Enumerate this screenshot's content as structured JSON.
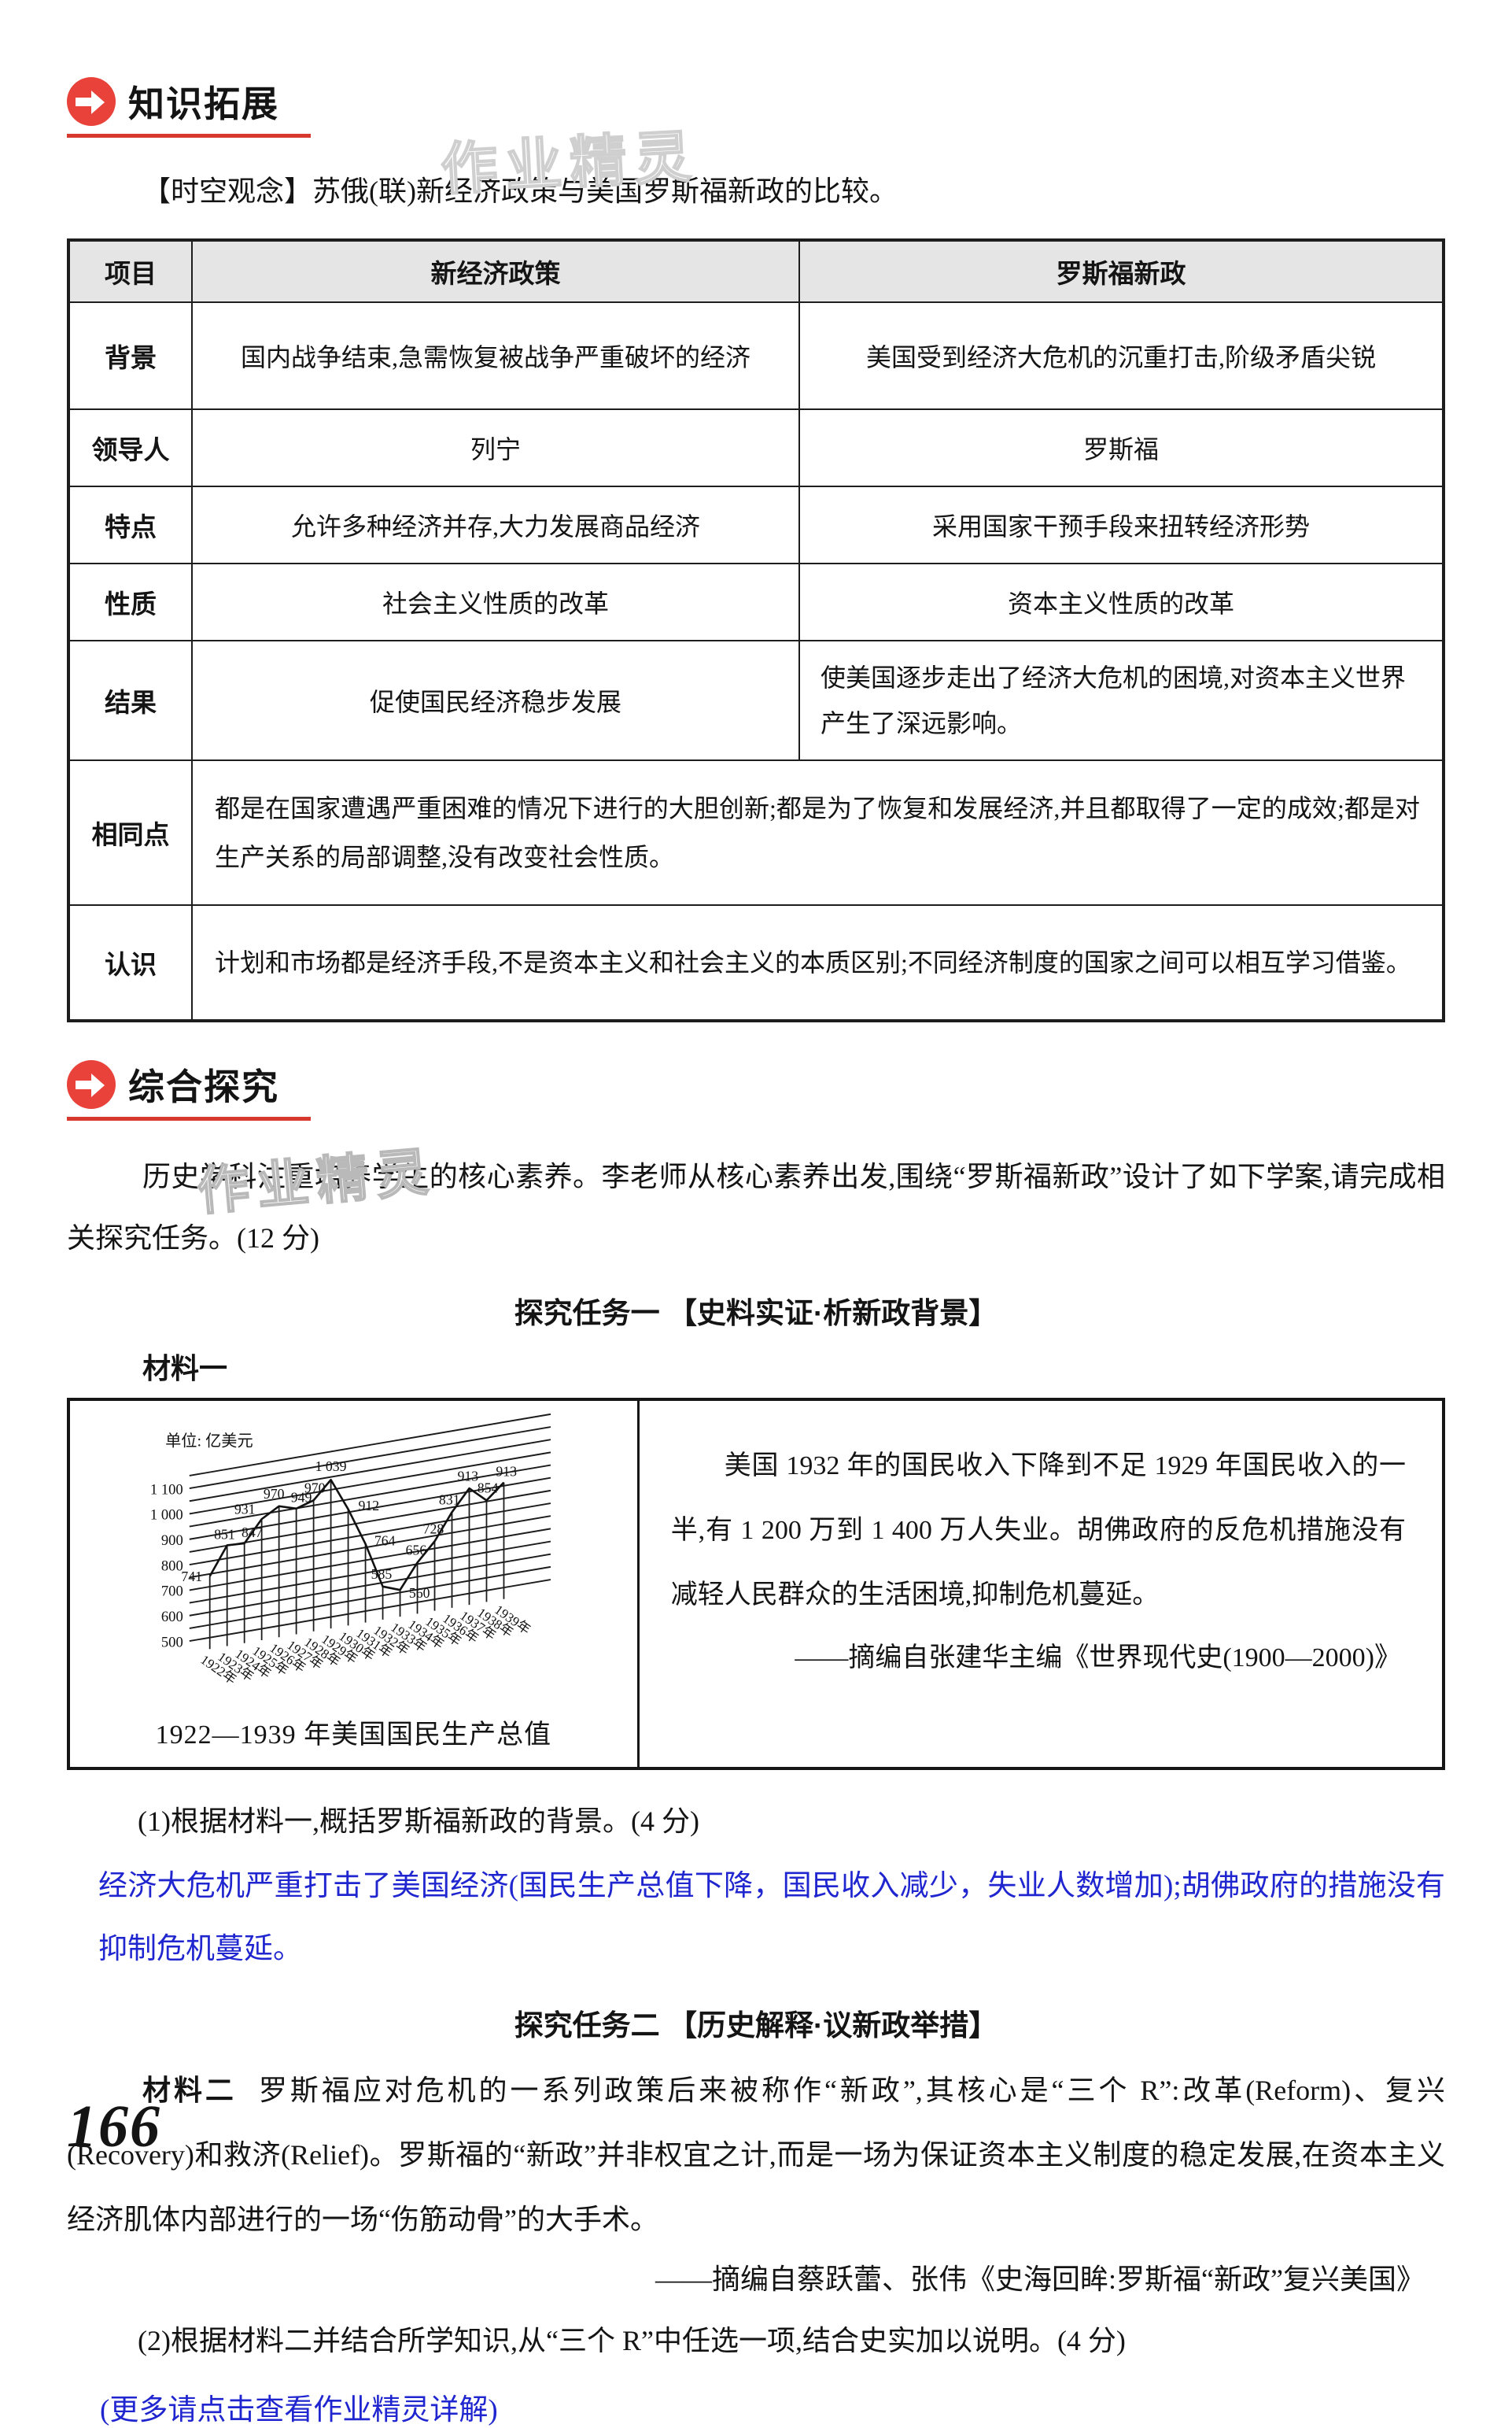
{
  "colors": {
    "accent_red": "#e8423a",
    "answer_blue": "#2026cf",
    "table_header_bg": "#e5e5e5"
  },
  "watermarks": {
    "over_table": "作业精灵",
    "over_chart": "作业精灵"
  },
  "section_knowledge": {
    "title": "知识拓展",
    "intro": "【时空观念】苏俄(联)新经济政策与美国罗斯福新政的比较。",
    "table": {
      "headers": [
        "项目",
        "新经济政策",
        "罗斯福新政"
      ],
      "rows": [
        {
          "label": "背景",
          "nep": "国内战争结束,急需恢复被战争严重破坏的经济",
          "nd": "美国受到经济大危机的沉重打击,阶级矛盾尖锐"
        },
        {
          "label": "领导人",
          "nep": "列宁",
          "nd": "罗斯福"
        },
        {
          "label": "特点",
          "nep": "允许多种经济并存,大力发展商品经济",
          "nd": "采用国家干预手段来扭转经济形势"
        },
        {
          "label": "性质",
          "nep": "社会主义性质的改革",
          "nd": "资本主义性质的改革"
        },
        {
          "label": "结果",
          "nep": "促使国民经济稳步发展",
          "nd": "使美国逐步走出了经济大危机的困境,对资本主义世界产生了深远影响。"
        },
        {
          "label": "相同点",
          "span": "都是在国家遭遇严重困难的情况下进行的大胆创新;都是为了恢复和发展经济,并且都取得了一定的成效;都是对生产关系的局部调整,没有改变社会性质。"
        },
        {
          "label": "认识",
          "span": "计划和市场都是经济手段,不是资本主义和社会主义的本质区别;不同经济制度的国家之间可以相互学习借鉴。"
        }
      ]
    }
  },
  "section_inquiry": {
    "title": "综合探究",
    "intro": "历史学科注重培养学生的核心素养。李老师从核心素养出发,围绕“罗斯福新政”设计了如下学案,请完成相关探究任务。(12 分)",
    "task1": {
      "heading": "探究任务一 【史料实证·析新政背景】",
      "material_label": "材料一",
      "material_text": "美国 1932 年的国民收入下降到不足 1929 年国民收入的一半,有 1 200 万到 1 400 万人失业。胡佛政府的反危机措施没有减轻人民群众的生活困境,抑制危机蔓延。",
      "material_source": "——摘编自张建华主编《世界现代史(1900—2000)》",
      "question": "(1)根据材料一,概括罗斯福新政的背景。(4 分)",
      "answer": "经济大危机严重打击了美国经济(国民生产总值下降，国民收入减少，失业人数增加);胡佛政府的措施没有抑制危机蔓延。"
    },
    "task2": {
      "heading": "探究任务二 【历史解释·议新政举措】",
      "material_label": "材料二",
      "material_text": "罗斯福应对危机的一系列政策后来被称作“新政”,其核心是“三个 R”:改革(Reform)、复兴(Recovery)和救济(Relief)。罗斯福的“新政”并非权宜之计,而是一场为保证资本主义制度的稳定发展,在资本主义经济肌体内部进行的一场“伤筋动骨”的大手术。",
      "material_source": "——摘编自蔡跃蕾、张伟《史海回眸:罗斯福“新政”复兴美国》",
      "question": "(2)根据材料二并结合所学知识,从“三个 R”中任选一项,结合史实加以说明。(4 分)",
      "more_link": "(更多请点击查看作业精灵详解)"
    }
  },
  "chart_data": {
    "type": "line",
    "style": "oblique-grid",
    "title": "1922—1939 年美国国民生产总值",
    "unit_label": "单位: 亿美元",
    "x": [
      "1922年",
      "1923年",
      "1924年",
      "1925年",
      "1926年",
      "1927年",
      "1928年",
      "1929年",
      "1930年",
      "1931年",
      "1932年",
      "1933年",
      "1934年",
      "1935年",
      "1936年",
      "1937年",
      "1938年",
      "1939年"
    ],
    "values": [
      741,
      851,
      847,
      931,
      970,
      949,
      970,
      1039,
      912,
      764,
      585,
      560,
      656,
      728,
      831,
      913,
      854,
      913
    ],
    "point_labels": [
      "741",
      "851",
      "847",
      "931",
      "970",
      "949",
      "970",
      "1 039",
      "912",
      "764",
      "585",
      "560",
      "656",
      "728",
      "831",
      "913",
      "854",
      "913"
    ],
    "y_ticks": [
      500,
      600,
      700,
      800,
      900,
      1000,
      1100
    ],
    "y_tick_labels": [
      "500",
      "600",
      "700",
      "800",
      "900",
      "1 000",
      "1 100"
    ],
    "ylim": [
      500,
      1100
    ],
    "grid_step": 50,
    "grid": true,
    "legend": false
  },
  "page": {
    "number": "166"
  }
}
